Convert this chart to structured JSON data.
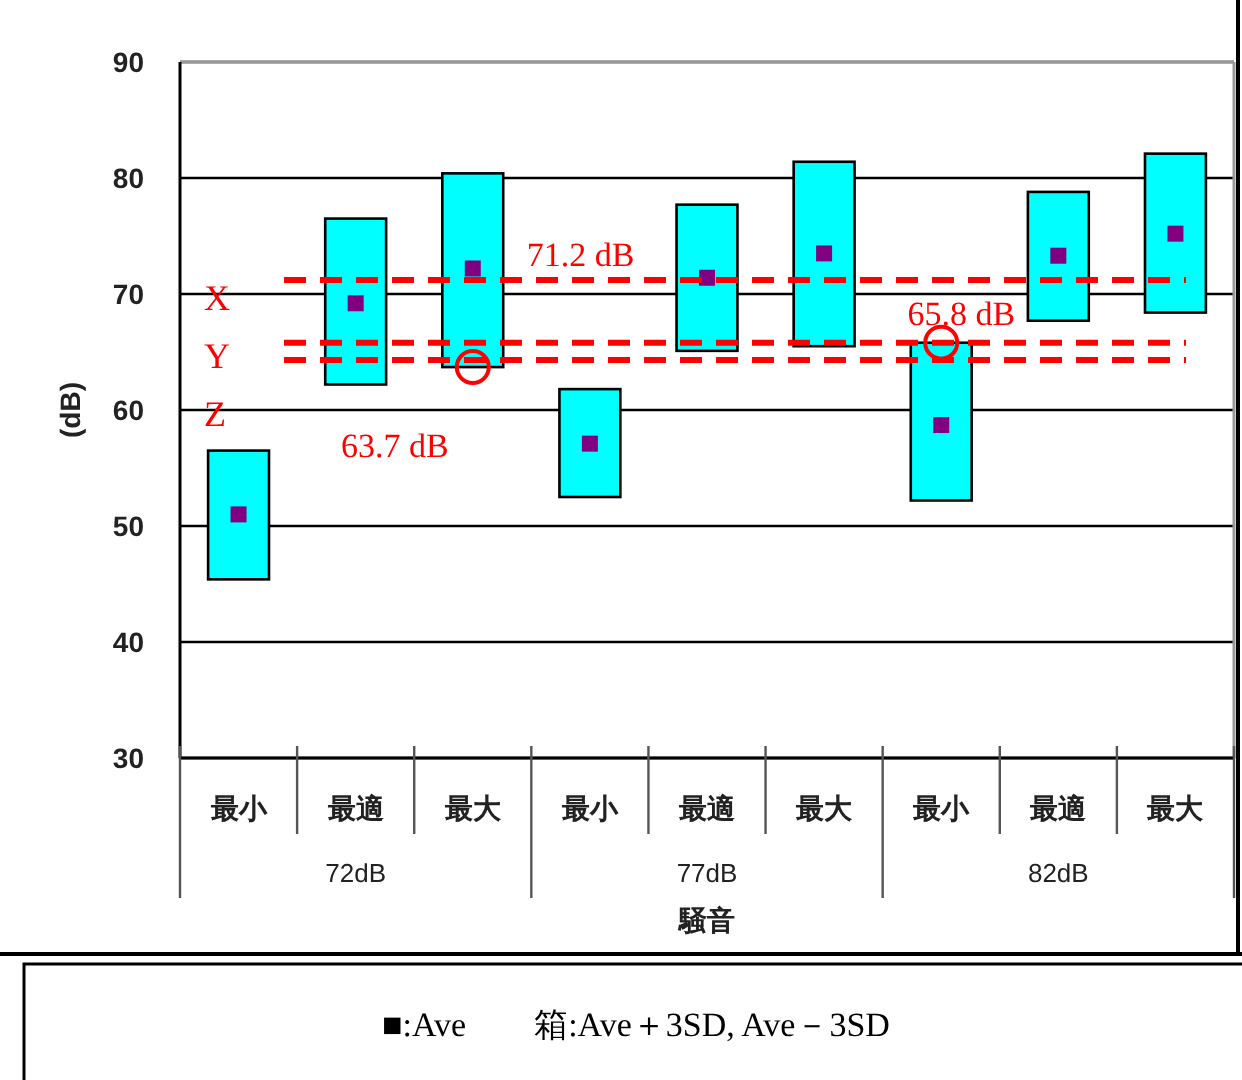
{
  "chart_data": {
    "type": "bar",
    "ylabel": "(dB)",
    "xlabel": "騒音",
    "categories": [
      "最小",
      "最適",
      "最大",
      "最小",
      "最適",
      "最大",
      "最小",
      "最適",
      "最大"
    ],
    "series": [
      {
        "type": "bar",
        "color": "#00ffff",
        "base": [
          45.4,
          62.2,
          63.7,
          52.5,
          65.1,
          65.5,
          52.2,
          67.7,
          68.4
        ],
        "values": [
          11.1,
          14.3,
          16.7,
          9.3,
          12.6,
          15.9,
          13.6,
          11.1,
          13.7
        ]
      },
      {
        "type": "scatter",
        "color": "#800080",
        "values": [
          51.0,
          69.2,
          72.2,
          57.1,
          71.4,
          73.5,
          58.7,
          73.3,
          75.2
        ]
      }
    ],
    "marker": "square",
    "ylim": [
      30,
      90
    ],
    "yticks": [
      30,
      40,
      50,
      60,
      70,
      80,
      90
    ],
    "grid": "y",
    "ref_lines": [
      {
        "axis": "y",
        "value": 71.2,
        "label": "X",
        "color": "#ff0000",
        "line_style": "dashed"
      },
      {
        "axis": "y",
        "value": 65.8,
        "label": "Y",
        "color": "#ff0000",
        "line_style": "dashed"
      },
      {
        "axis": "y",
        "value": 64.3,
        "label": "Z",
        "color": "#ff0000",
        "line_style": "dashed"
      }
    ],
    "annotations": [
      "72dB",
      "77dB",
      "82dB",
      {
        "text": "71.2 dB",
        "y": 71.2
      },
      {
        "text": "63.7 dB",
        "x": "最大",
        "y": 63.7
      },
      {
        "text": "65.8 dB",
        "y": 65.8
      },
      "■:Ave　　箱:Ave＋3SD, Ave－3SD"
    ]
  }
}
